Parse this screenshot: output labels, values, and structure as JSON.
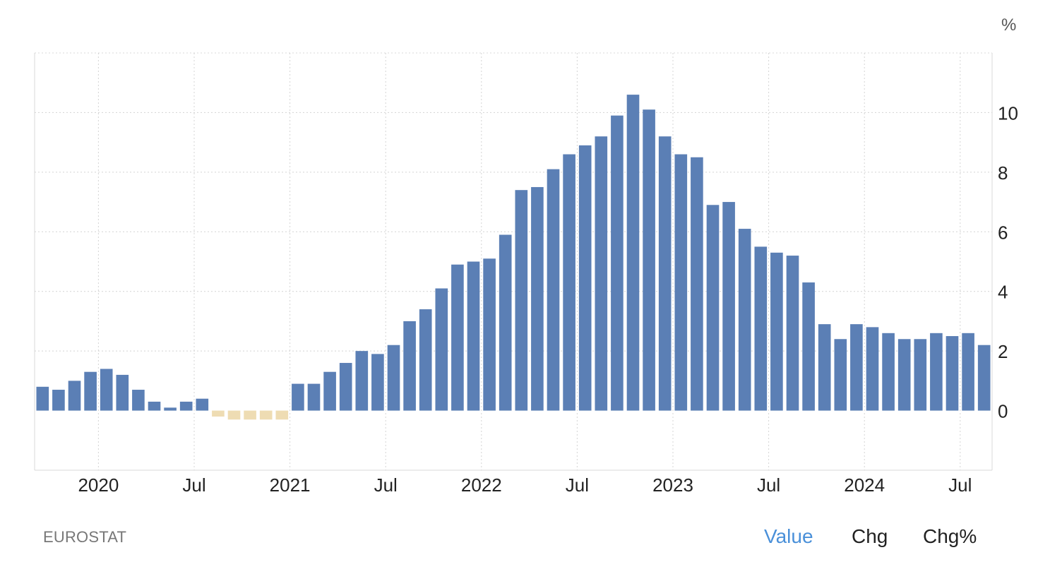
{
  "chart_data": {
    "type": "bar",
    "unit": "%",
    "x_tick_labels": [
      "2020",
      "Jul",
      "2021",
      "Jul",
      "2022",
      "Jul",
      "2023",
      "Jul",
      "2024",
      "Jul"
    ],
    "x_tick_dates": [
      "2020-01",
      "2020-07",
      "2021-01",
      "2021-07",
      "2022-01",
      "2022-07",
      "2023-01",
      "2023-07",
      "2024-01",
      "2024-07"
    ],
    "y_ticks": [
      0,
      2,
      4,
      6,
      8,
      10
    ],
    "ylim": [
      -2,
      12
    ],
    "grid": true,
    "y_axis_side": "right",
    "categories": [
      "2019-09",
      "2019-10",
      "2019-11",
      "2019-12",
      "2020-01",
      "2020-02",
      "2020-03",
      "2020-04",
      "2020-05",
      "2020-06",
      "2020-07",
      "2020-08",
      "2020-09",
      "2020-10",
      "2020-11",
      "2020-12",
      "2021-01",
      "2021-02",
      "2021-03",
      "2021-04",
      "2021-05",
      "2021-06",
      "2021-07",
      "2021-08",
      "2021-09",
      "2021-10",
      "2021-11",
      "2021-12",
      "2022-01",
      "2022-02",
      "2022-03",
      "2022-04",
      "2022-05",
      "2022-06",
      "2022-07",
      "2022-08",
      "2022-09",
      "2022-10",
      "2022-11",
      "2022-12",
      "2023-01",
      "2023-02",
      "2023-03",
      "2023-04",
      "2023-05",
      "2023-06",
      "2023-07",
      "2023-08",
      "2023-09",
      "2023-10",
      "2023-11",
      "2023-12",
      "2024-01",
      "2024-02",
      "2024-03",
      "2024-04",
      "2024-05",
      "2024-06",
      "2024-07",
      "2024-08"
    ],
    "values": [
      0.8,
      0.7,
      1.0,
      1.3,
      1.4,
      1.2,
      0.7,
      0.3,
      0.1,
      0.3,
      0.4,
      -0.2,
      -0.3,
      -0.3,
      -0.3,
      -0.3,
      0.9,
      0.9,
      1.3,
      1.6,
      2.0,
      1.9,
      2.2,
      3.0,
      3.4,
      4.1,
      4.9,
      5.0,
      5.1,
      5.9,
      7.4,
      7.5,
      8.1,
      8.6,
      8.9,
      9.2,
      9.9,
      10.6,
      10.1,
      9.2,
      8.6,
      8.5,
      6.9,
      7.0,
      6.1,
      5.5,
      5.3,
      5.2,
      4.3,
      2.9,
      2.4,
      2.9,
      2.8,
      2.6,
      2.4,
      2.4,
      2.6,
      2.5,
      2.6,
      2.2
    ],
    "colors": {
      "positive": "#5b7fb5",
      "negative": "#eedcb3"
    }
  },
  "header": {
    "unit_label": "%"
  },
  "footer": {
    "source": "EUROSTAT",
    "toggles": [
      {
        "label": "Value",
        "active": true
      },
      {
        "label": "Chg",
        "active": false
      },
      {
        "label": "Chg%",
        "active": false
      }
    ]
  }
}
